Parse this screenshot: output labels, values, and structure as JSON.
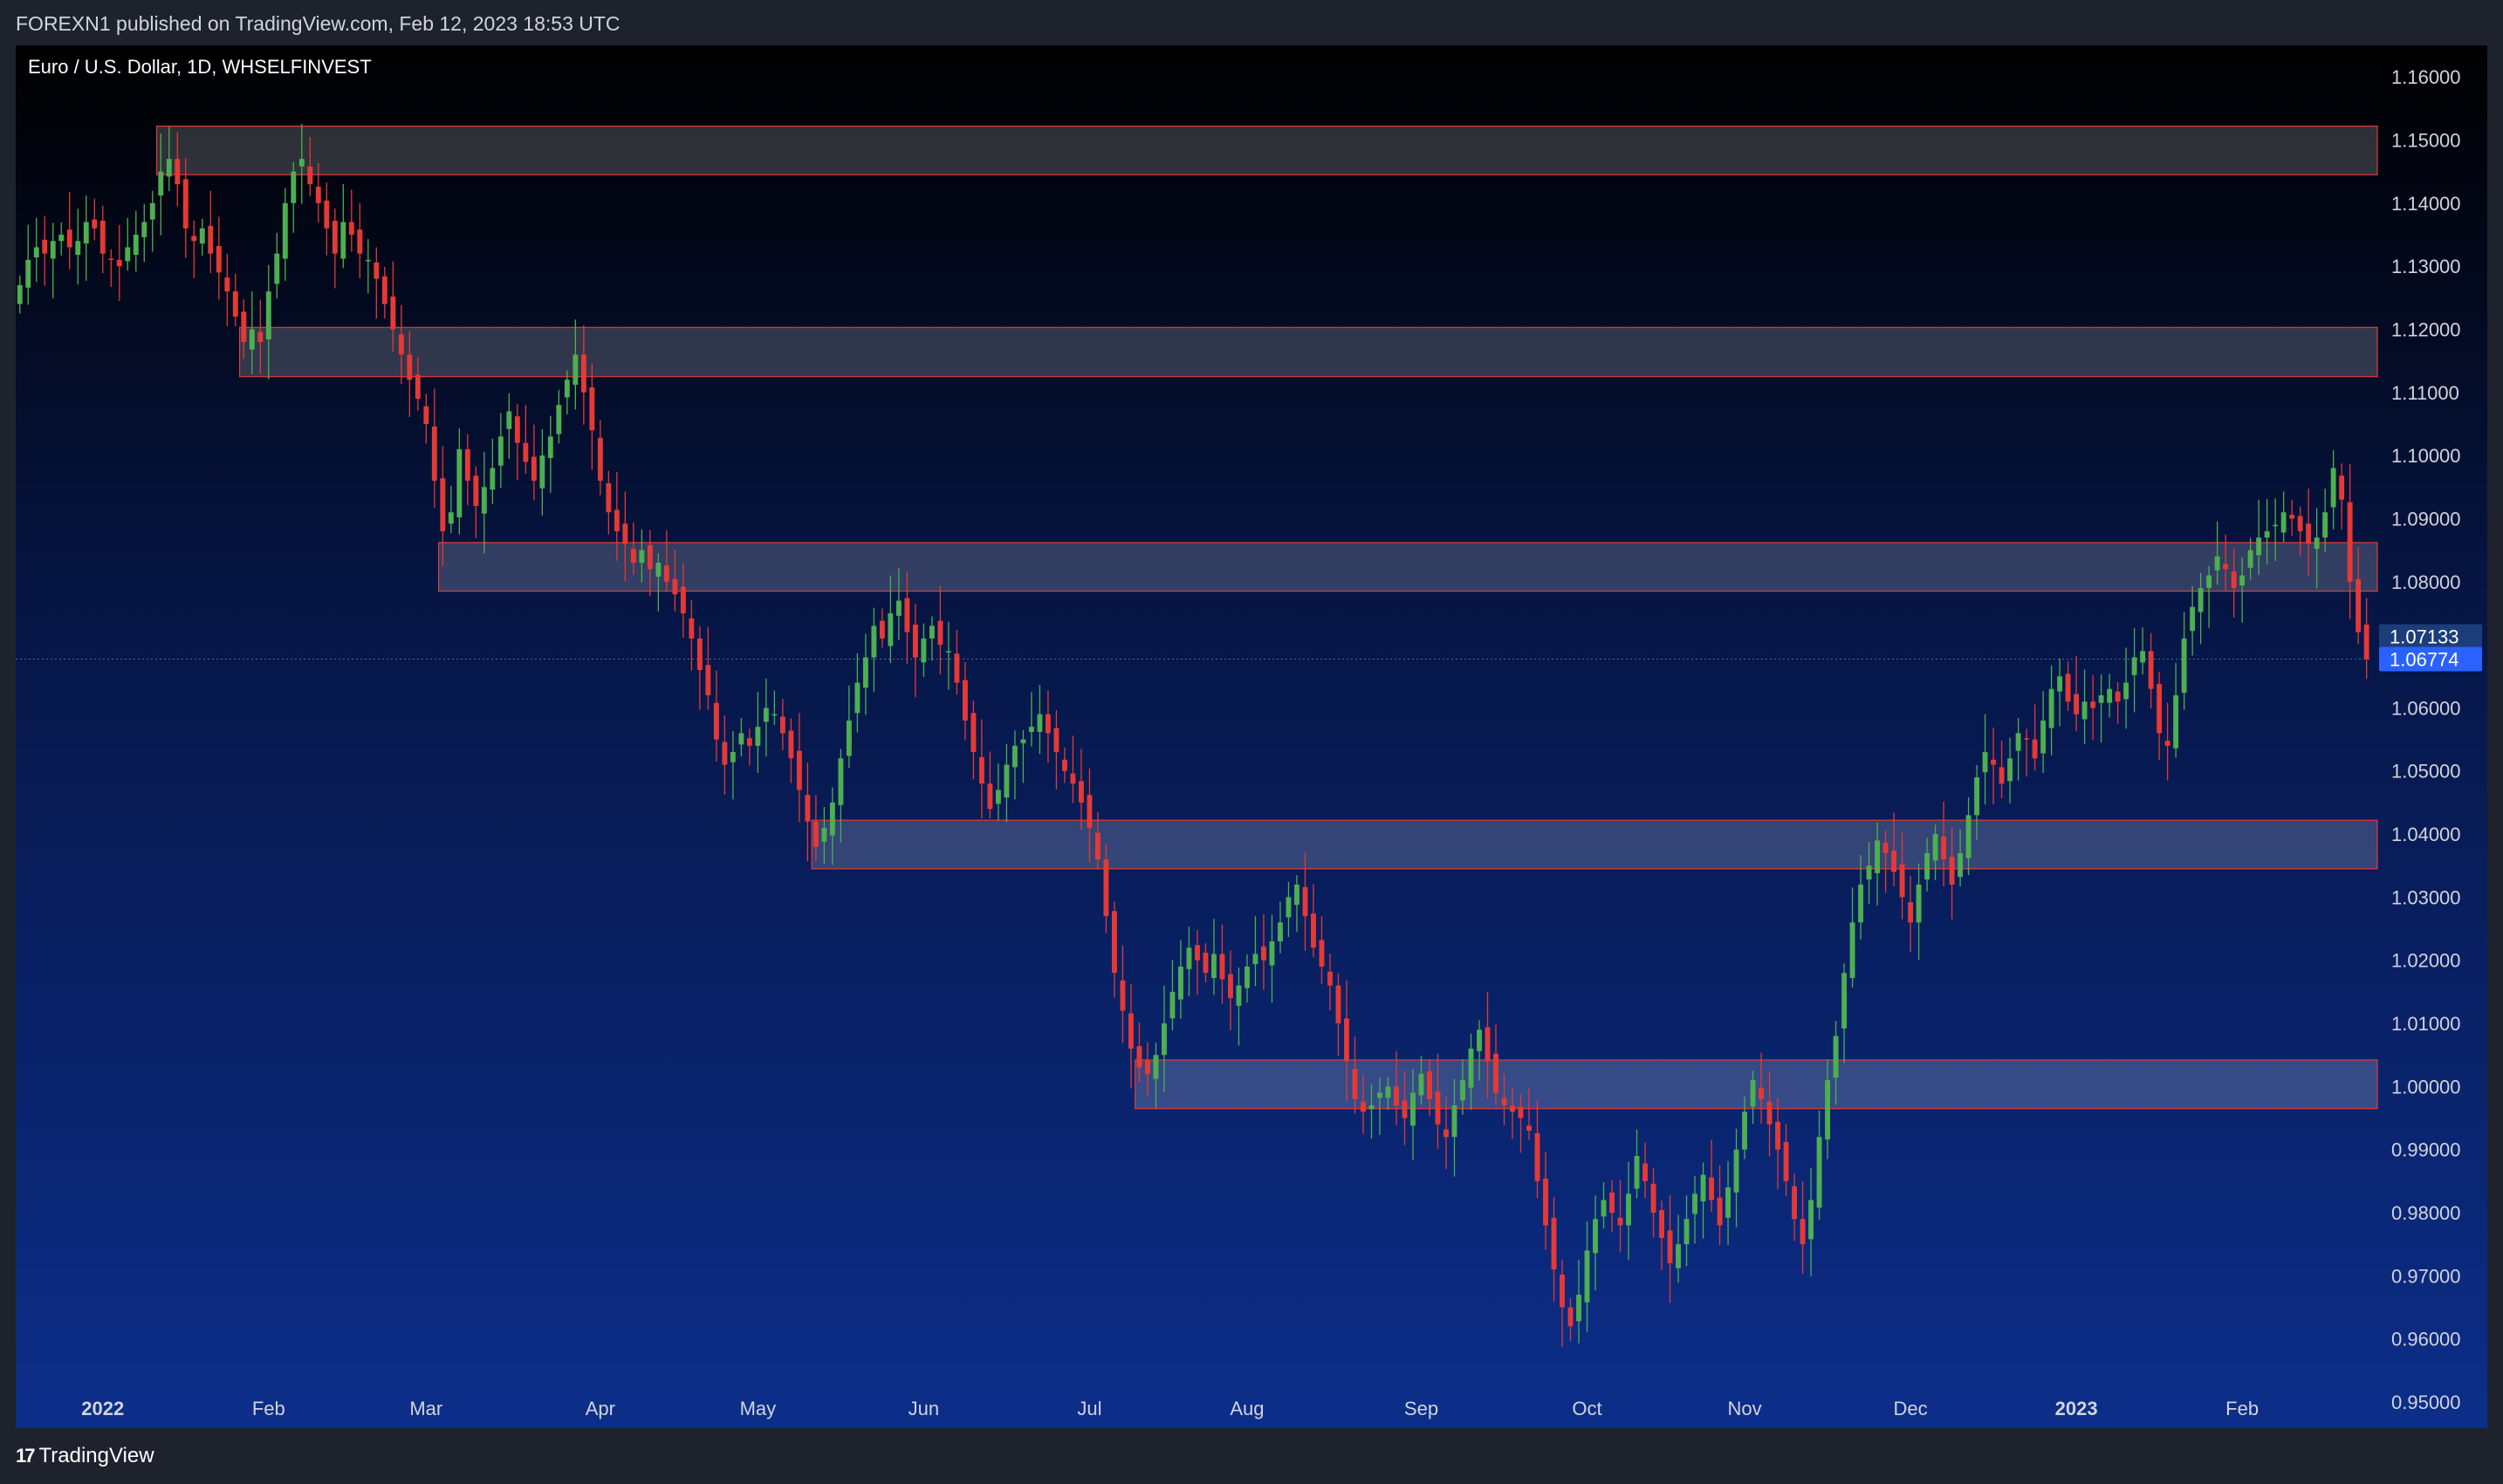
{
  "header": {
    "text": "FOREXN1 published on TradingView.com, Feb 12, 2023 18:53 UTC"
  },
  "footer": {
    "logo_mark": "17",
    "logo_text": "TradingView"
  },
  "colors": {
    "up": "#4caf50",
    "down": "#e53935",
    "zone_fill": "#ffffff",
    "zone_border": "#e53935",
    "prev_tag": "#1c3d7a",
    "last_tag": "#2962ff"
  },
  "chart_data": {
    "type": "candlestick",
    "title": "Euro / U.S. Dollar, 1D, WHSELFINVEST",
    "ylim": [
      0.95,
      1.165
    ],
    "y_ticks": [
      "1.16000",
      "1.15000",
      "1.14000",
      "1.13000",
      "1.12000",
      "1.11000",
      "1.10000",
      "1.09000",
      "1.08000",
      "1.07000",
      "1.06000",
      "1.05000",
      "1.04000",
      "1.03000",
      "1.02000",
      "1.01000",
      "1.00000",
      "0.99000",
      "0.98000",
      "0.97000",
      "0.96000",
      "0.95000"
    ],
    "x_ticks": [
      {
        "label": "2022",
        "idx": 10,
        "bold": true
      },
      {
        "label": "Feb",
        "idx": 30
      },
      {
        "label": "Mar",
        "idx": 49
      },
      {
        "label": "Apr",
        "idx": 70
      },
      {
        "label": "May",
        "idx": 89
      },
      {
        "label": "Jun",
        "idx": 109
      },
      {
        "label": "Jul",
        "idx": 129
      },
      {
        "label": "Aug",
        "idx": 148
      },
      {
        "label": "Sep",
        "idx": 169
      },
      {
        "label": "Oct",
        "idx": 189
      },
      {
        "label": "Nov",
        "idx": 208
      },
      {
        "label": "Dec",
        "idx": 228
      },
      {
        "label": "2023",
        "idx": 248,
        "bold": true
      },
      {
        "label": "Feb",
        "idx": 268
      }
    ],
    "zones": [
      {
        "from_idx": 17,
        "low": 1.1445,
        "high": 1.1522
      },
      {
        "from_idx": 27,
        "low": 1.1125,
        "high": 1.1203
      },
      {
        "from_idx": 51,
        "low": 1.0785,
        "high": 1.0862
      },
      {
        "from_idx": 96,
        "low": 1.0345,
        "high": 1.0422
      },
      {
        "from_idx": 135,
        "low": 0.9965,
        "high": 1.0042
      }
    ],
    "price_tags": [
      {
        "label": "1.07133",
        "value": 1.07133,
        "role": "prev"
      },
      {
        "label": "1.06774",
        "value": 1.06774,
        "role": "last"
      }
    ],
    "closes": [
      1.127,
      1.131,
      1.133,
      1.132,
      1.134,
      1.135,
      1.133,
      1.134,
      1.137,
      1.136,
      1.132,
      1.131,
      1.13,
      1.133,
      1.135,
      1.137,
      1.14,
      1.145,
      1.147,
      1.143,
      1.136,
      1.134,
      1.136,
      1.132,
      1.129,
      1.126,
      1.122,
      1.118,
      1.12,
      1.118,
      1.126,
      1.132,
      1.14,
      1.145,
      1.147,
      1.143,
      1.14,
      1.136,
      1.132,
      1.137,
      1.135,
      1.132,
      1.131,
      1.128,
      1.124,
      1.12,
      1.116,
      1.112,
      1.109,
      1.105,
      1.096,
      1.088,
      1.091,
      1.101,
      1.096,
      1.092,
      1.095,
      1.098,
      1.103,
      1.107,
      1.102,
      1.099,
      1.096,
      1.1,
      1.103,
      1.108,
      1.112,
      1.116,
      1.11,
      1.104,
      1.096,
      1.091,
      1.088,
      1.086,
      1.083,
      1.085,
      1.082,
      1.083,
      1.08,
      1.078,
      1.075,
      1.071,
      1.066,
      1.062,
      1.055,
      1.051,
      1.053,
      1.056,
      1.054,
      1.057,
      1.06,
      1.059,
      1.056,
      1.052,
      1.047,
      1.042,
      1.038,
      1.041,
      1.045,
      1.052,
      1.058,
      1.064,
      1.068,
      1.073,
      1.071,
      1.075,
      1.077,
      1.072,
      1.068,
      1.071,
      1.073,
      1.07,
      1.069,
      1.064,
      1.058,
      1.053,
      1.048,
      1.044,
      1.047,
      1.051,
      1.054,
      1.055,
      1.057,
      1.059,
      1.056,
      1.053,
      1.05,
      1.048,
      1.045,
      1.041,
      1.036,
      1.027,
      1.018,
      1.012,
      1.006,
      1.003,
      1.002,
      1.005,
      1.01,
      1.015,
      1.019,
      1.022,
      1.02,
      1.018,
      1.021,
      1.017,
      1.014,
      1.016,
      1.019,
      1.021,
      1.02,
      1.023,
      1.026,
      1.03,
      1.032,
      1.027,
      1.022,
      1.019,
      1.016,
      1.01,
      1.004,
      0.998,
      0.996,
      0.997,
      0.999,
      1.0,
      0.997,
      0.995,
      0.999,
      1.002,
      0.998,
      0.994,
      0.992,
      0.997,
      1.001,
      1.006,
      1.009,
      1.004,
      0.999,
      0.997,
      0.996,
      0.995,
      0.993,
      0.985,
      0.978,
      0.971,
      0.965,
      0.962,
      0.967,
      0.974,
      0.979,
      0.982,
      0.98,
      0.978,
      0.983,
      0.989,
      0.985,
      0.98,
      0.976,
      0.972,
      0.975,
      0.979,
      0.983,
      0.986,
      0.982,
      0.978,
      0.984,
      0.99,
      0.996,
      1.001,
      0.998,
      0.994,
      0.99,
      0.985,
      0.979,
      0.975,
      0.982,
      0.992,
      1.001,
      1.008,
      1.018,
      1.026,
      1.032,
      1.035,
      1.039,
      1.037,
      1.034,
      1.03,
      1.026,
      1.032,
      1.037,
      1.04,
      1.036,
      1.032,
      1.037,
      1.043,
      1.049,
      1.053,
      1.051,
      1.048,
      1.052,
      1.056,
      1.055,
      1.052,
      1.058,
      1.063,
      1.065,
      1.061,
      1.059,
      1.061,
      1.06,
      1.062,
      1.063,
      1.061,
      1.064,
      1.068,
      1.069,
      1.063,
      1.056,
      1.054,
      1.062,
      1.071,
      1.076,
      1.079,
      1.081,
      1.084,
      1.082,
      1.079,
      1.081,
      1.085,
      1.087,
      1.088,
      1.089,
      1.091,
      1.09,
      1.088,
      1.086,
      1.087,
      1.091,
      1.098,
      1.093,
      1.08,
      1.072,
      1.0677
    ]
  }
}
